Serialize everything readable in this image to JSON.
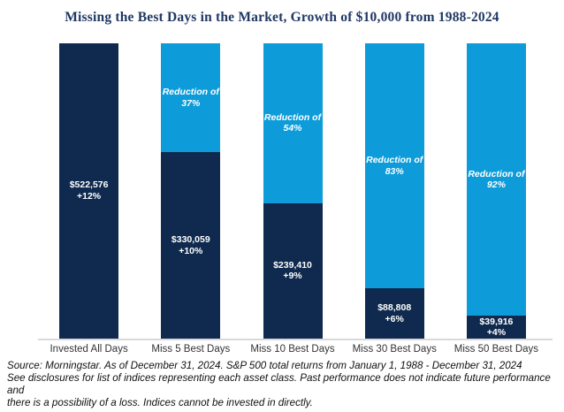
{
  "title": "Missing the Best Days in the Market, Growth of $10,000 from 1988-2024",
  "colors": {
    "bar_dark_navy": "#0F2A4E",
    "bar_light_blue": "#0D9CD9",
    "title_navy": "#1F3864",
    "axis_line_gray": "#D9D9D9"
  },
  "chart_data": {
    "type": "bar",
    "stacked": true,
    "title": "Missing the Best Days in the Market, Growth of $10,000 from 1988-2024",
    "categories": [
      "Invested All Days",
      "Miss 5 Best Days",
      "Miss 10 Best Days",
      "Miss 30 Best Days",
      "Miss 50 Best Days"
    ],
    "ylim": [
      0,
      522576
    ],
    "grid": false,
    "legend": "none",
    "series": [
      {
        "name": "Growth of $10,000 (dark navy segment)",
        "values": [
          522576,
          330059,
          239410,
          88808,
          39916
        ]
      },
      {
        "name": "Reduction vs. invested all days (light blue segment)",
        "values_pct": [
          0,
          37,
          54,
          83,
          92
        ]
      }
    ],
    "bars": [
      {
        "category": "Invested All Days",
        "value": 522576,
        "value_label": "$522,576",
        "return_label": "+12%",
        "return_pct": 12,
        "reduction_pct": 0
      },
      {
        "category": "Miss 5 Best Days",
        "value": 330059,
        "value_label": "$330,059",
        "return_label": "+10%",
        "return_pct": 10,
        "reduction_pct": 37,
        "reduction_line1": "Reduction of",
        "reduction_line2": "37%"
      },
      {
        "category": "Miss 10 Best Days",
        "value": 239410,
        "value_label": "$239,410",
        "return_label": "+9%",
        "return_pct": 9,
        "reduction_pct": 54,
        "reduction_line1": "Reduction of",
        "reduction_line2": "54%"
      },
      {
        "category": "Miss 30 Best Days",
        "value": 88808,
        "value_label": "$88,808",
        "return_label": "+6%",
        "return_pct": 6,
        "reduction_pct": 83,
        "reduction_line1": "Reduction of",
        "reduction_line2": "83%"
      },
      {
        "category": "Miss 50 Best Days",
        "value": 39916,
        "value_label": "$39,916",
        "return_label": "+4%",
        "return_pct": 4,
        "reduction_pct": 92,
        "reduction_line1": "Reduction of",
        "reduction_line2": "92%"
      }
    ]
  },
  "source_note": {
    "line1": "Source: Morningstar. As of December 31, 2024. S&P 500 total returns from January 1, 1988 - December 31, 2024",
    "line2": "See disclosures for list of indices representing each asset class. Past performance does not indicate future performance and",
    "line3": "there is a possibility of a loss. Indices cannot be invested in directly."
  }
}
